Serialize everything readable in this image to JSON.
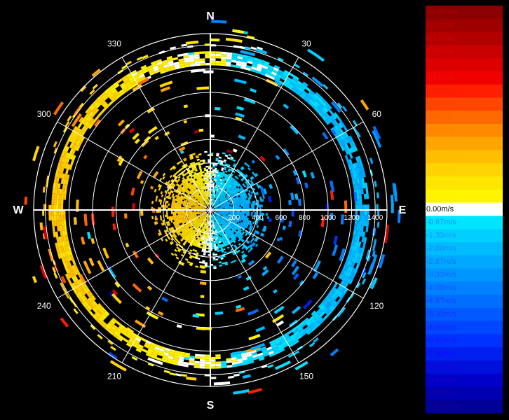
{
  "chart_data": {
    "type": "heatmap",
    "subtype": "polar-ppi-radial-velocity",
    "compass": {
      "north": "N",
      "east": "E",
      "south": "S",
      "west": "W"
    },
    "angle_labels": [
      "30",
      "60",
      "120",
      "150",
      "210",
      "240",
      "300",
      "330"
    ],
    "range_labels": [
      "200",
      "400",
      "600",
      "800",
      "1000",
      "1200",
      "1400"
    ],
    "range_max": 1500,
    "range_ring_step": 200,
    "colorbar": {
      "labels": [
        "10.00m/s",
        "9.33m/s",
        "8.67m/s",
        "8.00m/s",
        "7.33m/s",
        "6.67m/s",
        "6.00m/s",
        "5.33m/s",
        "4.67m/s",
        "4.00m/s",
        "3.33m/s",
        "2.67m/s",
        "2.00m/s",
        "1.33m/s",
        "0.67m/s",
        "0.00m/s",
        "-0.67m/s",
        "-1.33m/s",
        "-2.00m/s",
        "-2.67m/s",
        "-3.33m/s",
        "-4.00m/s",
        "-4.67m/s",
        "-5.33m/s",
        "-6.00m/s",
        "-6.67m/s",
        "-7.33m/s",
        "-8.00m/s",
        "-8.67m/s",
        "-9.33m/s",
        "-10.00m/s"
      ],
      "colors": [
        "#8b0000",
        "#9e0000",
        "#b20000",
        "#c80000",
        "#dc0000",
        "#f00000",
        "#ff1e00",
        "#ff4600",
        "#ff6a00",
        "#ff8a00",
        "#ffa500",
        "#ffbf00",
        "#ffd400",
        "#ffe600",
        "#fff500",
        "#ffffff",
        "#00e5ff",
        "#00d0ff",
        "#00bcff",
        "#00a8ff",
        "#0096ff",
        "#0082ff",
        "#006eff",
        "#005aff",
        "#0046ff",
        "#0032ff",
        "#0020f0",
        "#0010dc",
        "#0000c8",
        "#0000b0",
        "#000098"
      ],
      "label_colors": [
        "#b00000",
        "#c00000",
        "#d00000",
        "#e00000",
        "#e00000",
        "#e81010",
        "#f02000",
        "#ff4000",
        "#ff6000",
        "#ff8000",
        "#ffa000",
        "#ffb800",
        "#ffcc00",
        "#ffe000",
        "#fff000",
        "#ffffff",
        "#1090ff",
        "#1a90ff",
        "#1a80ff",
        "#1a70ff",
        "#1a60ff",
        "#1a50ff",
        "#1a40ff",
        "#1a30ff",
        "#1a20ff",
        "#1a10ff",
        "#1a00ff",
        "#1a00e0",
        "#1a00c0",
        "#1a00a0",
        "#1a0090"
      ]
    },
    "velocity_pattern": {
      "approaching_side": "west",
      "receding_side": "east",
      "near_field_range": [
        0,
        500
      ],
      "strong_echo_band": [
        1230,
        1350
      ],
      "outer_ring": 1500
    }
  }
}
